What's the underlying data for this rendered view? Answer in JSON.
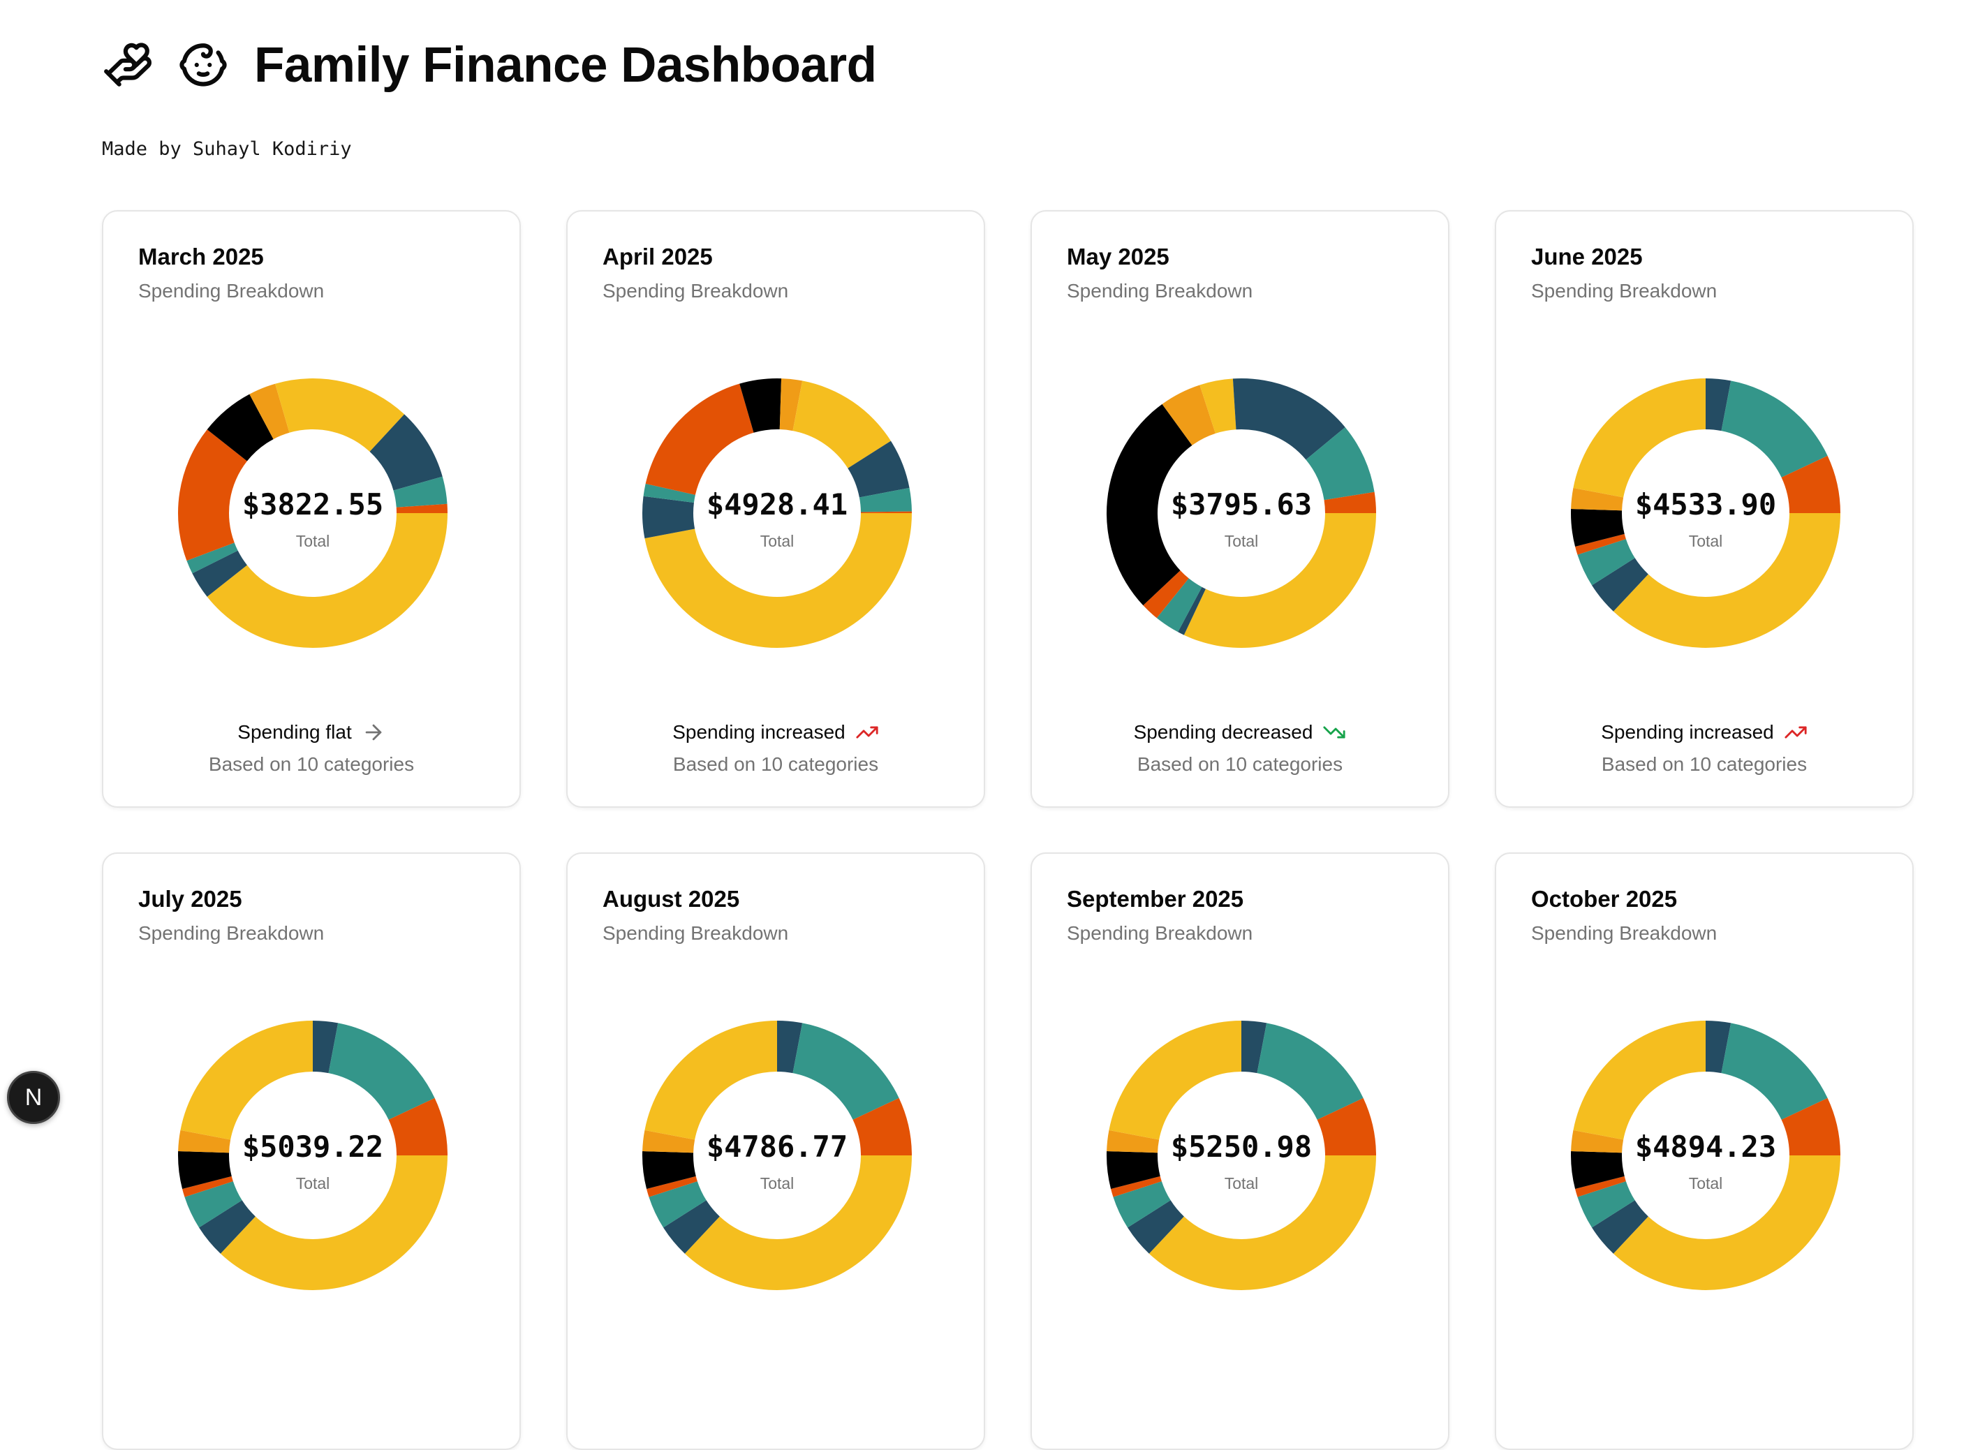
{
  "header": {
    "title": "Family Finance Dashboard",
    "byline": "Made by Suhayl Kodiriy",
    "icons": [
      "hand-holding-heart-icon",
      "baby-face-icon"
    ]
  },
  "card_common": {
    "subtitle": "Spending Breakdown",
    "total_label": "Total",
    "footnote": "Based on 10 categories"
  },
  "colors": {
    "yellow": "#f5be1f",
    "orange": "#f09c17",
    "red_orange": "#e35205",
    "teal": "#34968a",
    "navy": "#244c63",
    "black": "#000000",
    "trend_up": "#dc2626",
    "trend_down": "#16a34a",
    "trend_flat": "#737373"
  },
  "chart_data": [
    {
      "type": "pie",
      "month": "March 2025",
      "total": "$3822.55",
      "trend_label": "Spending flat",
      "trend": "flat",
      "slices": [
        {
          "color": "yellow",
          "percent": 36
        },
        {
          "color": "navy",
          "percent": 3
        },
        {
          "color": "teal",
          "percent": 1.5
        },
        {
          "color": "red_orange",
          "percent": 15
        },
        {
          "color": "black",
          "percent": 6
        },
        {
          "color": "orange",
          "percent": 3
        },
        {
          "color": "yellow",
          "percent": 15
        },
        {
          "color": "navy",
          "percent": 8
        },
        {
          "color": "teal",
          "percent": 3
        },
        {
          "color": "red_orange",
          "percent": 1
        }
      ]
    },
    {
      "type": "pie",
      "month": "April 2025",
      "total": "$4928.41",
      "trend_label": "Spending increased",
      "trend": "up",
      "slices": [
        {
          "color": "yellow",
          "percent": 47
        },
        {
          "color": "navy",
          "percent": 5
        },
        {
          "color": "teal",
          "percent": 1.5
        },
        {
          "color": "red_orange",
          "percent": 17
        },
        {
          "color": "black",
          "percent": 5
        },
        {
          "color": "orange",
          "percent": 2.5
        },
        {
          "color": "yellow",
          "percent": 13
        },
        {
          "color": "navy",
          "percent": 6
        },
        {
          "color": "teal",
          "percent": 2.8
        },
        {
          "color": "red_orange",
          "percent": 0.2
        }
      ]
    },
    {
      "type": "pie",
      "month": "May 2025",
      "total": "$3795.63",
      "trend_label": "Spending decreased",
      "trend": "down",
      "slices": [
        {
          "color": "yellow",
          "percent": 32
        },
        {
          "color": "navy",
          "percent": 0.8
        },
        {
          "color": "teal",
          "percent": 3
        },
        {
          "color": "red_orange",
          "percent": 2.2
        },
        {
          "color": "black",
          "percent": 27
        },
        {
          "color": "orange",
          "percent": 5
        },
        {
          "color": "yellow",
          "percent": 4
        },
        {
          "color": "navy",
          "percent": 15
        },
        {
          "color": "teal",
          "percent": 8.5
        },
        {
          "color": "red_orange",
          "percent": 2.5
        }
      ]
    },
    {
      "type": "pie",
      "month": "June 2025",
      "total": "$4533.90",
      "trend_label": "Spending increased",
      "trend": "up",
      "slices": [
        {
          "color": "yellow",
          "percent": 37
        },
        {
          "color": "navy",
          "percent": 4
        },
        {
          "color": "teal",
          "percent": 4
        },
        {
          "color": "red_orange",
          "percent": 1
        },
        {
          "color": "black",
          "percent": 4.5
        },
        {
          "color": "orange",
          "percent": 2.5
        },
        {
          "color": "yellow",
          "percent": 22
        },
        {
          "color": "navy",
          "percent": 3
        },
        {
          "color": "teal",
          "percent": 15
        },
        {
          "color": "red_orange",
          "percent": 7
        }
      ]
    },
    {
      "type": "pie",
      "month": "July 2025",
      "total": "$5039.22",
      "trend_label": "",
      "trend": "",
      "slices": [
        {
          "color": "yellow",
          "percent": 37
        },
        {
          "color": "navy",
          "percent": 4
        },
        {
          "color": "teal",
          "percent": 4
        },
        {
          "color": "red_orange",
          "percent": 1
        },
        {
          "color": "black",
          "percent": 4.5
        },
        {
          "color": "orange",
          "percent": 2.5
        },
        {
          "color": "yellow",
          "percent": 22
        },
        {
          "color": "navy",
          "percent": 3
        },
        {
          "color": "teal",
          "percent": 15
        },
        {
          "color": "red_orange",
          "percent": 7
        }
      ]
    },
    {
      "type": "pie",
      "month": "August 2025",
      "total": "$4786.77",
      "trend_label": "",
      "trend": "",
      "slices": [
        {
          "color": "yellow",
          "percent": 37
        },
        {
          "color": "navy",
          "percent": 4
        },
        {
          "color": "teal",
          "percent": 4
        },
        {
          "color": "red_orange",
          "percent": 1
        },
        {
          "color": "black",
          "percent": 4.5
        },
        {
          "color": "orange",
          "percent": 2.5
        },
        {
          "color": "yellow",
          "percent": 22
        },
        {
          "color": "navy",
          "percent": 3
        },
        {
          "color": "teal",
          "percent": 15
        },
        {
          "color": "red_orange",
          "percent": 7
        }
      ]
    },
    {
      "type": "pie",
      "month": "September 2025",
      "total": "$5250.98",
      "trend_label": "",
      "trend": "",
      "slices": [
        {
          "color": "yellow",
          "percent": 37
        },
        {
          "color": "navy",
          "percent": 4
        },
        {
          "color": "teal",
          "percent": 4
        },
        {
          "color": "red_orange",
          "percent": 1
        },
        {
          "color": "black",
          "percent": 4.5
        },
        {
          "color": "orange",
          "percent": 2.5
        },
        {
          "color": "yellow",
          "percent": 22
        },
        {
          "color": "navy",
          "percent": 3
        },
        {
          "color": "teal",
          "percent": 15
        },
        {
          "color": "red_orange",
          "percent": 7
        }
      ]
    },
    {
      "type": "pie",
      "month": "October 2025",
      "total": "$4894.23",
      "trend_label": "",
      "trend": "",
      "slices": [
        {
          "color": "yellow",
          "percent": 37
        },
        {
          "color": "navy",
          "percent": 4
        },
        {
          "color": "teal",
          "percent": 4
        },
        {
          "color": "red_orange",
          "percent": 1
        },
        {
          "color": "black",
          "percent": 4.5
        },
        {
          "color": "orange",
          "percent": 2.5
        },
        {
          "color": "yellow",
          "percent": 22
        },
        {
          "color": "navy",
          "percent": 3
        },
        {
          "color": "teal",
          "percent": 15
        },
        {
          "color": "red_orange",
          "percent": 7
        }
      ]
    }
  ],
  "dev_badge": {
    "letter": "N"
  }
}
